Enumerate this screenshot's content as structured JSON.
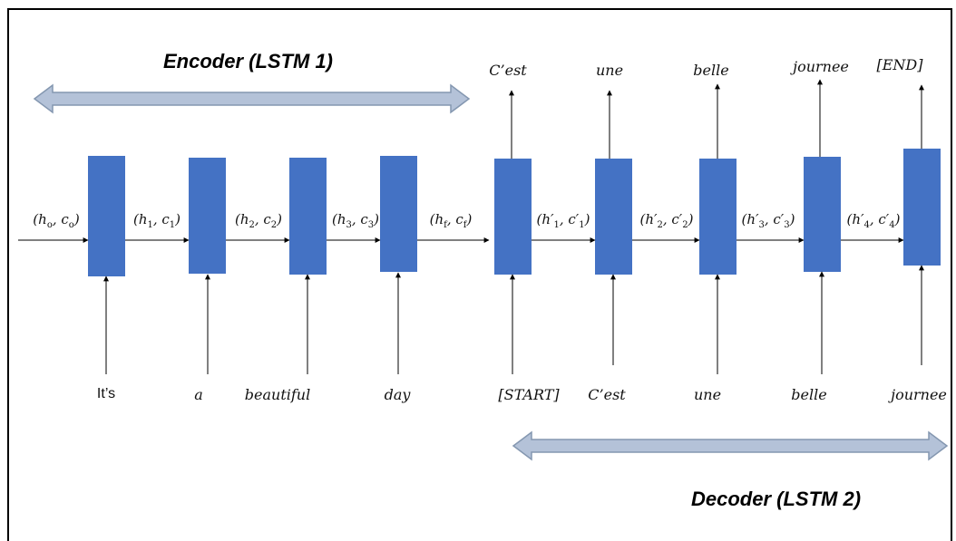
{
  "titles": {
    "encoder": "Encoder (LSTM 1)",
    "decoder": "Decoder (LSTM 2)"
  },
  "encoder_inputs": [
    "It’s",
    "a",
    "beautiful",
    "day"
  ],
  "decoder_inputs": [
    "[START]",
    "C’est",
    "une",
    "belle",
    "journee"
  ],
  "decoder_outputs": [
    "C’est",
    "une",
    "belle",
    "journee",
    "[END]"
  ],
  "states": [
    {
      "base": "h",
      "base_sub": "o",
      "pre": "",
      "cell": "c",
      "cell_sub": "o",
      "pre2": ""
    },
    {
      "base": "h",
      "base_sub": "1",
      "pre": "",
      "cell": "c",
      "cell_sub": "1",
      "pre2": ""
    },
    {
      "base": "h",
      "base_sub": "2",
      "pre": "",
      "cell": "c",
      "cell_sub": "2",
      "pre2": ""
    },
    {
      "base": "h",
      "base_sub": "3",
      "pre": "",
      "cell": "c",
      "cell_sub": "3",
      "pre2": ""
    },
    {
      "base": "h",
      "base_sub": "f",
      "pre": "",
      "cell": "c",
      "cell_sub": "f",
      "pre2": ""
    },
    {
      "base": "h′",
      "base_sub": "1",
      "pre": "",
      "cell": "c′",
      "cell_sub": "1",
      "pre2": ""
    },
    {
      "base": "h′",
      "base_sub": "2",
      "pre": "",
      "cell": "c′",
      "cell_sub": "2",
      "pre2": ""
    },
    {
      "base": "h′",
      "base_sub": "3",
      "pre": "",
      "cell": "c′",
      "cell_sub": "3",
      "pre2": ""
    },
    {
      "base": "h′",
      "base_sub": "4",
      "pre": "",
      "cell": "c′",
      "cell_sub": "4",
      "pre2": ""
    }
  ],
  "colors": {
    "cell": "#4472c4",
    "band_fill": "#b4c2d8",
    "band_stroke": "#8497b0",
    "line": "#000000"
  }
}
